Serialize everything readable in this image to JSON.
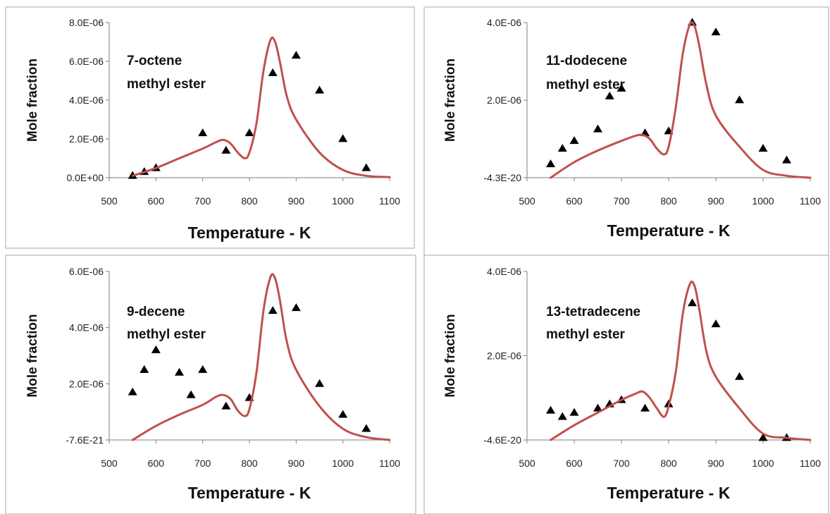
{
  "chart_data": [
    {
      "type": "line",
      "annotation": [
        "7-octene",
        "methyl ester"
      ],
      "xlabel": "Temperature - K",
      "ylabel": "Mole fraction",
      "xlim": [
        500,
        1100
      ],
      "xticks": [
        "500",
        "600",
        "700",
        "800",
        "900",
        "1000",
        "1100"
      ],
      "ylim": [
        0,
        8e-06
      ],
      "yticks": [
        "0.0E+00",
        "2.0E-06",
        "4.0E-06",
        "6.0E-06",
        "8.0E-06"
      ],
      "series": [
        {
          "kind": "scatter",
          "marker": "triangle",
          "color": "#000000",
          "x": [
            550,
            575,
            600,
            700,
            750,
            800,
            850,
            900,
            950,
            1000,
            1050
          ],
          "y": [
            1e-07,
            3e-07,
            5e-07,
            2.3e-06,
            1.4e-06,
            2.3e-06,
            5.4e-06,
            6.3e-06,
            4.5e-06,
            2e-06,
            5e-07
          ]
        },
        {
          "kind": "line",
          "color": "#c0504d",
          "x": [
            550,
            600,
            650,
            700,
            730,
            745,
            760,
            775,
            790,
            800,
            815,
            830,
            845,
            855,
            865,
            880,
            900,
            950,
            1000,
            1050,
            1100
          ],
          "y": [
            1e-07,
            5e-07,
            1e-06,
            1.5e-06,
            1.85e-06,
            1.95e-06,
            1.75e-06,
            1.3e-06,
            1e-06,
            1.3e-06,
            2.8e-06,
            5.5e-06,
            7.1e-06,
            7e-06,
            6e-06,
            4.2e-06,
            3e-06,
            1.3e-06,
            4e-07,
            1e-07,
            3e-08
          ]
        }
      ]
    },
    {
      "type": "line",
      "annotation": [
        "11-dodecene",
        "methyl ester"
      ],
      "xlabel": "Temperature - K",
      "ylabel": "Mole fraction",
      "xlim": [
        500,
        1100
      ],
      "xticks": [
        "500",
        "600",
        "700",
        "800",
        "900",
        "1000",
        "1100"
      ],
      "ylim": [
        0,
        4e-06
      ],
      "yticks": [
        "-4.3E-20",
        "2.0E-06",
        "4.0E-06"
      ],
      "series": [
        {
          "kind": "scatter",
          "marker": "triangle",
          "color": "#000000",
          "x": [
            550,
            575,
            600,
            650,
            675,
            700,
            750,
            800,
            850,
            900,
            950,
            1000,
            1050
          ],
          "y": [
            3.5e-07,
            7.5e-07,
            9.5e-07,
            1.25e-06,
            2.1e-06,
            2.3e-06,
            1.15e-06,
            1.2e-06,
            4e-06,
            3.75e-06,
            2e-06,
            7.5e-07,
            4.5e-07
          ]
        },
        {
          "kind": "line",
          "color": "#c0504d",
          "x": [
            550,
            600,
            650,
            700,
            730,
            745,
            760,
            775,
            790,
            800,
            815,
            830,
            845,
            855,
            865,
            880,
            900,
            950,
            1000,
            1050,
            1100
          ],
          "y": [
            0,
            4e-07,
            7e-07,
            9.5e-07,
            1.08e-06,
            1.1e-06,
            1e-06,
            7.5e-07,
            6e-07,
            8e-07,
            1.8e-06,
            3.2e-06,
            3.95e-06,
            3.9e-06,
            3.4e-06,
            2.4e-06,
            1.6e-06,
            8e-07,
            2e-07,
            5e-08,
            0
          ]
        }
      ]
    },
    {
      "type": "line",
      "annotation": [
        "9-decene",
        "methyl ester"
      ],
      "xlabel": "Temperature - K",
      "ylabel": "Mole fraction",
      "xlim": [
        500,
        1100
      ],
      "xticks": [
        "500",
        "600",
        "700",
        "800",
        "900",
        "1000",
        "1100"
      ],
      "ylim": [
        0,
        6e-06
      ],
      "yticks": [
        "-7.6E-21",
        "2.0E-06",
        "4.0E-06",
        "6.0E-06"
      ],
      "series": [
        {
          "kind": "scatter",
          "marker": "triangle",
          "color": "#000000",
          "x": [
            550,
            575,
            600,
            650,
            675,
            700,
            750,
            800,
            850,
            900,
            950,
            1000,
            1050
          ],
          "y": [
            1.7e-06,
            2.5e-06,
            3.2e-06,
            2.4e-06,
            1.6e-06,
            2.5e-06,
            1.2e-06,
            1.5e-06,
            4.6e-06,
            4.7e-06,
            2e-06,
            9e-07,
            4e-07
          ]
        },
        {
          "kind": "line",
          "color": "#c0504d",
          "x": [
            550,
            600,
            650,
            700,
            730,
            745,
            760,
            775,
            790,
            800,
            815,
            830,
            845,
            855,
            865,
            880,
            900,
            950,
            1000,
            1050,
            1100
          ],
          "y": [
            0,
            5e-07,
            9e-07,
            1.25e-06,
            1.55e-06,
            1.6e-06,
            1.45e-06,
            1.05e-06,
            8.5e-07,
            1.1e-06,
            2.4e-06,
            4.6e-06,
            5.8e-06,
            5.75e-06,
            5e-06,
            3.5e-06,
            2.5e-06,
            1.2e-06,
            4e-07,
            1e-07,
            0
          ]
        }
      ]
    },
    {
      "type": "line",
      "annotation": [
        "13-tetradecene",
        "methyl ester"
      ],
      "xlabel": "Temperature - K",
      "ylabel": "Mole fraction",
      "xlim": [
        500,
        1100
      ],
      "xticks": [
        "500",
        "600",
        "700",
        "800",
        "900",
        "1000",
        "1100"
      ],
      "ylim": [
        0,
        4e-06
      ],
      "yticks": [
        "-4.6E-20",
        "2.0E-06",
        "4.0E-06"
      ],
      "series": [
        {
          "kind": "scatter",
          "marker": "triangle",
          "color": "#000000",
          "x": [
            550,
            575,
            600,
            650,
            675,
            700,
            750,
            800,
            850,
            900,
            950,
            1000,
            1050
          ],
          "y": [
            7e-07,
            5.5e-07,
            6.5e-07,
            7.5e-07,
            8.5e-07,
            9.5e-07,
            7.5e-07,
            8.5e-07,
            3.25e-06,
            2.75e-06,
            1.5e-06,
            5e-08,
            5e-08
          ]
        },
        {
          "kind": "line",
          "color": "#c0504d",
          "x": [
            550,
            600,
            650,
            700,
            730,
            745,
            760,
            775,
            790,
            800,
            815,
            830,
            845,
            855,
            865,
            880,
            900,
            950,
            1000,
            1050,
            1100
          ],
          "y": [
            0,
            3.5e-07,
            6.5e-07,
            9.5e-07,
            1.1e-06,
            1.15e-06,
            1e-06,
            7.5e-07,
            5.5e-07,
            8e-07,
            1.6e-06,
            3e-06,
            3.7e-06,
            3.65e-06,
            3.1e-06,
            2.1e-06,
            1.5e-06,
            7.5e-07,
            1.5e-07,
            5e-08,
            0
          ]
        }
      ]
    }
  ]
}
